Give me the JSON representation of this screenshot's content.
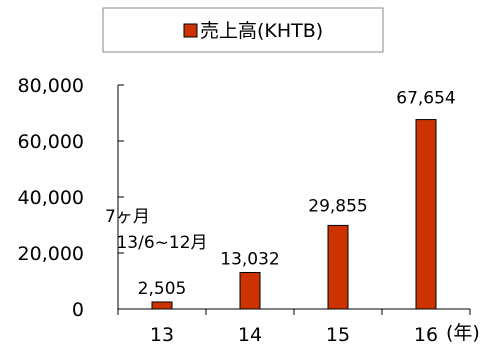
{
  "chart_data": {
    "type": "bar",
    "categories": [
      "13",
      "14",
      "15",
      "16"
    ],
    "x_unit": "(年)",
    "series": [
      {
        "name": "売上高(KHTB)",
        "color": "#cc3300",
        "values": [
          2505,
          13032,
          29855,
          67654
        ]
      }
    ],
    "data_labels": [
      "2,505",
      "13,032",
      "29,855",
      "67,654"
    ],
    "annotation_lines": [
      "7ヶ月",
      "13/6~12月"
    ],
    "ylim": [
      0,
      80000
    ],
    "yticks": [
      0,
      20000,
      40000,
      60000,
      80000
    ],
    "ytick_labels": [
      "0",
      "20,000",
      "40,000",
      "60,000",
      "80,000"
    ],
    "legend_position": "top",
    "grid": false
  }
}
